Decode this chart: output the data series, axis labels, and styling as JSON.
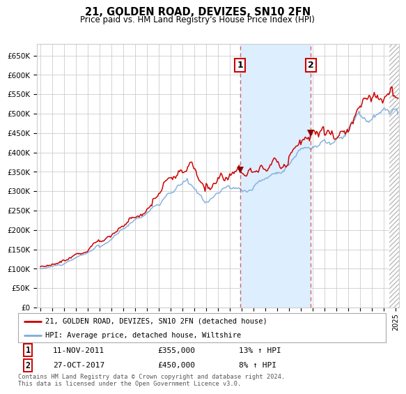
{
  "title": "21, GOLDEN ROAD, DEVIZES, SN10 2FN",
  "subtitle": "Price paid vs. HM Land Registry's House Price Index (HPI)",
  "ylim": [
    0,
    680000
  ],
  "yticks": [
    0,
    50000,
    100000,
    150000,
    200000,
    250000,
    300000,
    350000,
    400000,
    450000,
    500000,
    550000,
    600000,
    650000
  ],
  "xlim_start": 1994.7,
  "xlim_end": 2025.3,
  "grid_color": "#cccccc",
  "bg_color": "#ffffff",
  "shaded_region_color": "#ddeeff",
  "hpi_line_color": "#7aabdb",
  "price_line_color": "#cc0000",
  "transaction1_date": 2011.87,
  "transaction1_price": 355000,
  "transaction2_date": 2017.83,
  "transaction2_price": 450000,
  "legend_label_red": "21, GOLDEN ROAD, DEVIZES, SN10 2FN (detached house)",
  "legend_label_blue": "HPI: Average price, detached house, Wiltshire",
  "annotation1_date": "11-NOV-2011",
  "annotation1_price": "£355,000",
  "annotation1_hpi": "13% ↑ HPI",
  "annotation2_date": "27-OCT-2017",
  "annotation2_price": "£450,000",
  "annotation2_hpi": "8% ↑ HPI",
  "footer": "Contains HM Land Registry data © Crown copyright and database right 2024.\nThis data is licensed under the Open Government Licence v3.0."
}
